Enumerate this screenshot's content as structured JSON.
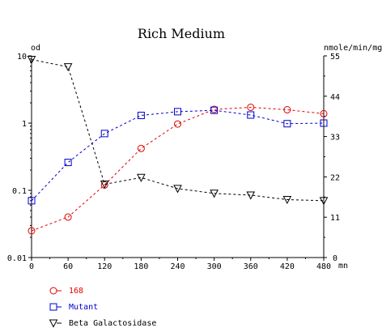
{
  "chart_data": {
    "type": "line",
    "title": "Rich Medium",
    "left_axis": {
      "label": "od",
      "scale": "log",
      "range": [
        0.01,
        10
      ],
      "ticks": [
        {
          "value": 0.01,
          "label": "0.01"
        },
        {
          "value": 0.1,
          "label": "0.1"
        },
        {
          "value": 1,
          "label": "1"
        },
        {
          "value": 10,
          "label": "10"
        }
      ]
    },
    "right_axis": {
      "label": "nmole/min/mg",
      "scale": "linear",
      "range": [
        0,
        55
      ],
      "ticks": [
        {
          "value": 0,
          "label": "0"
        },
        {
          "value": 11,
          "label": "11"
        },
        {
          "value": 22,
          "label": "22"
        },
        {
          "value": 33,
          "label": "33"
        },
        {
          "value": 44,
          "label": "44"
        },
        {
          "value": 55,
          "label": "55"
        }
      ]
    },
    "x_axis": {
      "label": "mn",
      "range": [
        0,
        480
      ],
      "ticks": [
        {
          "value": 0,
          "label": "0"
        },
        {
          "value": 60,
          "label": "60"
        },
        {
          "value": 120,
          "label": "120"
        },
        {
          "value": 180,
          "label": "180"
        },
        {
          "value": 240,
          "label": "240"
        },
        {
          "value": 300,
          "label": "300"
        },
        {
          "value": 360,
          "label": "360"
        },
        {
          "value": 420,
          "label": "420"
        },
        {
          "value": 480,
          "label": "480"
        }
      ]
    },
    "x": [
      0,
      60,
      120,
      180,
      240,
      300,
      360,
      420,
      480
    ],
    "series": [
      {
        "name": "168",
        "axis": "left",
        "marker": "circle",
        "color": "#e00000",
        "values": [
          0.025,
          0.04,
          0.12,
          0.42,
          0.97,
          1.6,
          1.72,
          1.58,
          1.38
        ]
      },
      {
        "name": "Mutant",
        "axis": "left",
        "marker": "square",
        "color": "#0000d0",
        "values": [
          0.07,
          0.26,
          0.7,
          1.3,
          1.48,
          1.55,
          1.32,
          0.98,
          1.0
        ]
      },
      {
        "name": "Beta Galactosidase",
        "axis": "right",
        "marker": "triangle",
        "color": "#000000",
        "values": [
          54,
          52,
          20,
          21.8,
          18.8,
          17.5,
          17.0,
          15.8,
          15.5
        ]
      }
    ],
    "legend_placement": "bottom-left",
    "grid": false
  }
}
